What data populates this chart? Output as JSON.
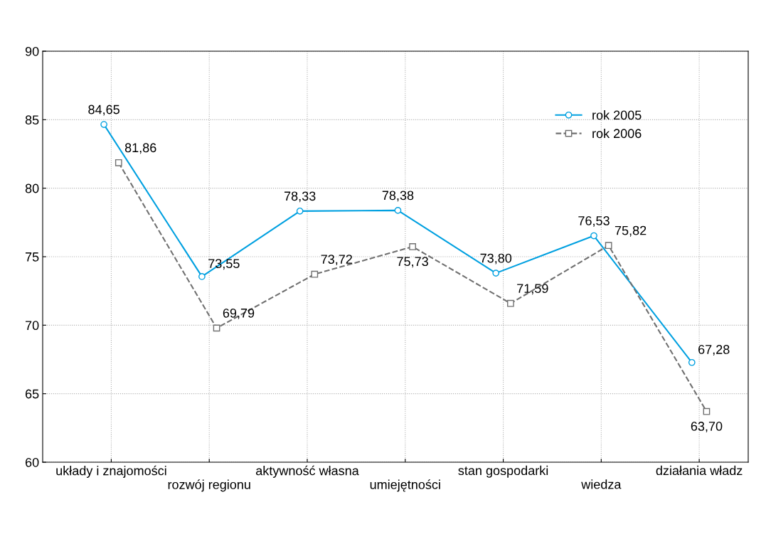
{
  "chart_data": {
    "type": "line",
    "categories": [
      "układy i znajomości",
      "rozwój regionu",
      "aktywność własna",
      "umiejętności",
      "stan gospodarki",
      "wiedza",
      "działania władz"
    ],
    "series": [
      {
        "name": "rok 2005",
        "color": "#00a0e0",
        "marker": "circle",
        "line_style": "solid",
        "values": [
          84.65,
          73.55,
          78.33,
          78.38,
          73.8,
          76.53,
          67.28
        ],
        "value_labels": [
          "84,65",
          "73,55",
          "78,33",
          "78,38",
          "73,80",
          "76,53",
          "67,28"
        ]
      },
      {
        "name": "rok 2006",
        "color": "#707070",
        "marker": "square",
        "line_style": "dashed",
        "values": [
          81.86,
          69.79,
          73.72,
          75.73,
          71.59,
          75.82,
          63.7
        ],
        "value_labels": [
          "81,86",
          "69,79",
          "73,72",
          "75,73",
          "71,59",
          "75,82",
          "63,70"
        ]
      }
    ],
    "ylim": [
      60,
      90
    ],
    "yticks": [
      60,
      65,
      70,
      75,
      80,
      85,
      90
    ],
    "grid": true,
    "legend": "top right"
  }
}
